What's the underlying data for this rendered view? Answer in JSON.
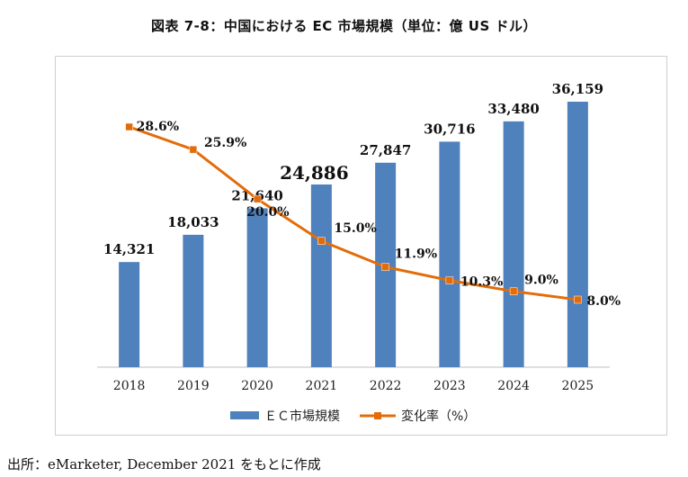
{
  "title": "図表 7-8：中国における EC 市場規模（単位：億 US ドル）",
  "source": "出所：eMarketer, December 2021 をもとに作成",
  "chart_data": {
    "type": "bar",
    "categories": [
      "2018",
      "2019",
      "2020",
      "2021",
      "2022",
      "2023",
      "2024",
      "2025"
    ],
    "series": [
      {
        "name": "ＥＣ市場規模",
        "kind": "bar",
        "values": [
          14321,
          18033,
          21640,
          24886,
          27847,
          30716,
          33480,
          36159
        ],
        "labels": [
          "14,321",
          "18,033",
          "21,640",
          "24,886",
          "27,847",
          "30,716",
          "33,480",
          "36,159"
        ],
        "color": "#4f81bd"
      },
      {
        "name": "変化率（%）",
        "kind": "line",
        "values": [
          28.6,
          25.9,
          20.0,
          15.0,
          11.9,
          10.3,
          9.0,
          8.0
        ],
        "labels": [
          "28.6%",
          "25.9%",
          "20.0%",
          "15.0%",
          "11.9%",
          "10.3%",
          "9.0%",
          "8.0%"
        ],
        "color": "#e36c0a"
      }
    ],
    "legend_position": "bottom",
    "grid": false
  }
}
